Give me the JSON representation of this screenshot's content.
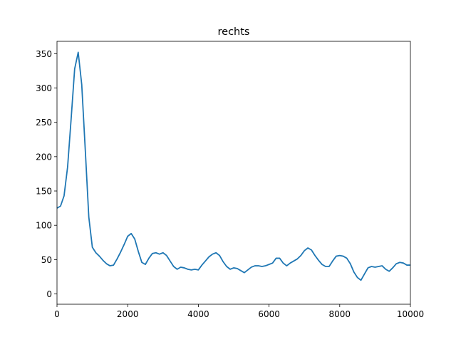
{
  "chart_data": {
    "type": "line",
    "title": "rechts",
    "xlabel": "",
    "ylabel": "",
    "xlim": [
      0,
      10000
    ],
    "ylim": [
      -15,
      368
    ],
    "xticks": [
      0,
      2000,
      4000,
      6000,
      8000,
      10000
    ],
    "yticks": [
      0,
      50,
      100,
      150,
      200,
      250,
      300,
      350
    ],
    "grid": false,
    "line_color": "#1f77b4",
    "series": [
      {
        "x": [
          0,
          100,
          200,
          300,
          400,
          500,
          600,
          700,
          800,
          900,
          1000,
          1100,
          1200,
          1300,
          1400,
          1500,
          1600,
          1700,
          1800,
          1900,
          2000,
          2100,
          2200,
          2300,
          2400,
          2500,
          2600,
          2700,
          2800,
          2900,
          3000,
          3100,
          3200,
          3300,
          3400,
          3500,
          3600,
          3700,
          3800,
          3900,
          4000,
          4100,
          4200,
          4300,
          4400,
          4500,
          4600,
          4700,
          4800,
          4900,
          5000,
          5100,
          5200,
          5300,
          5400,
          5500,
          5600,
          5700,
          5800,
          5900,
          6000,
          6100,
          6200,
          6300,
          6400,
          6500,
          6600,
          6700,
          6800,
          6900,
          7000,
          7100,
          7200,
          7300,
          7400,
          7500,
          7600,
          7700,
          7800,
          7900,
          8000,
          8100,
          8200,
          8300,
          8400,
          8500,
          8600,
          8700,
          8800,
          8900,
          9000,
          9100,
          9200,
          9300,
          9400,
          9500,
          9600,
          9700,
          9800,
          9900,
          10000
        ],
        "values": [
          125,
          128,
          143,
          185,
          255,
          328,
          352,
          305,
          210,
          112,
          68,
          60,
          55,
          49,
          44,
          41,
          42,
          51,
          61,
          72,
          84,
          88,
          80,
          62,
          46,
          43,
          52,
          59,
          60,
          58,
          60,
          56,
          48,
          40,
          36,
          39,
          38,
          36,
          35,
          36,
          35,
          42,
          48,
          54,
          58,
          60,
          56,
          47,
          40,
          36,
          38,
          37,
          34,
          31,
          35,
          39,
          41,
          41,
          40,
          41,
          43,
          45,
          52,
          52,
          45,
          41,
          45,
          48,
          51,
          56,
          63,
          67,
          64,
          56,
          49,
          43,
          40,
          40,
          48,
          55,
          56,
          55,
          52,
          44,
          32,
          24,
          20,
          29,
          38,
          40,
          39,
          40,
          41,
          36,
          33,
          38,
          44,
          46,
          45,
          42,
          42
        ]
      }
    ]
  }
}
